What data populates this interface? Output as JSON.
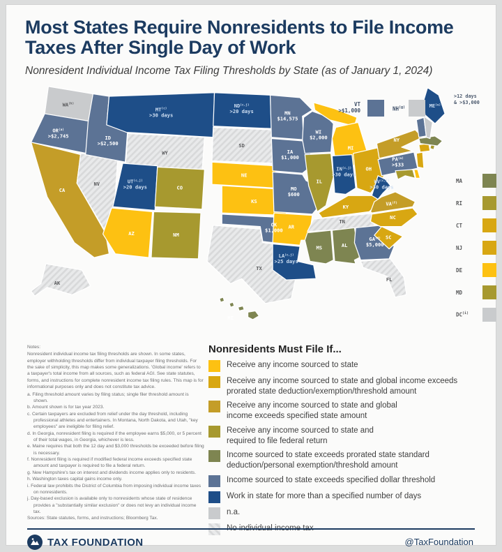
{
  "header": {
    "title": "Most States Require Nonresidents to File Income Taxes After Single Day of Work",
    "subtitle": "Nonresident Individual Income Tax Filing Thresholds by State (as of January 1, 2024)"
  },
  "legend": {
    "title": "Nonresidents Must File If...",
    "categories": [
      {
        "id": "any_income",
        "color": "#FDC112",
        "label": "Receive any income sourced to state"
      },
      {
        "id": "global_prorated",
        "color": "#D8A712",
        "label": "Receive any income sourced to state and global income exceeds\nprorated state deduction/exemption/threshold amount"
      },
      {
        "id": "global_specified",
        "color": "#C49D28",
        "label": "Receive any income sourced to state and global\nincome exceeds specified state amount"
      },
      {
        "id": "federal_return",
        "color": "#A7992F",
        "label": "Receive any income sourced to state and\nrequired to file federal return"
      },
      {
        "id": "prorated_standard",
        "color": "#7E8551",
        "label": "Income sourced to state exceeds prorated state standard\ndeduction/personal exemption/threshold amount"
      },
      {
        "id": "dollar",
        "color": "#5C7395",
        "label": "Income sourced to state exceeds specified dollar threshold"
      },
      {
        "id": "days",
        "color": "#1E4E88",
        "label": "Work in state for more than a specified number of days"
      },
      {
        "id": "na",
        "color": "#C9CBCD",
        "label": "n.a."
      },
      {
        "id": "no_tax",
        "color": "#EAEBEC",
        "label": "No individual income tax",
        "hatched": true
      }
    ]
  },
  "map": {
    "me_annotation": ">12 days\n& >$3,000",
    "vt_callout": {
      "abbr": "VT",
      "sup": "",
      "value": ">$1,000",
      "cat": "dollar"
    },
    "nh_callout": {
      "abbr": "NH",
      "sup": "g",
      "value": "",
      "cat": "na"
    },
    "small_states": [
      "MA",
      "RI",
      "CT",
      "NJ",
      "DE",
      "MD",
      "DC"
    ],
    "states": [
      {
        "abbr": "WA",
        "sup": "h",
        "value": "",
        "cat": "na"
      },
      {
        "abbr": "OR",
        "sup": "a",
        "value": ">$2,745",
        "cat": "dollar"
      },
      {
        "abbr": "ID",
        "sup": "",
        "value": ">$2,500",
        "cat": "dollar"
      },
      {
        "abbr": "MT",
        "sup": "c",
        "value": ">30 days",
        "cat": "days"
      },
      {
        "abbr": "ND",
        "sup": "c,j",
        "value": ">20 days",
        "cat": "days"
      },
      {
        "abbr": "SD",
        "sup": "",
        "value": "",
        "cat": "no_tax"
      },
      {
        "abbr": "WY",
        "sup": "",
        "value": "",
        "cat": "no_tax"
      },
      {
        "abbr": "NV",
        "sup": "",
        "value": "",
        "cat": "no_tax"
      },
      {
        "abbr": "CA",
        "sup": "",
        "value": "",
        "cat": "global_specified"
      },
      {
        "abbr": "UT",
        "sup": "c,j",
        "value": ">20 days",
        "cat": "days"
      },
      {
        "abbr": "CO",
        "sup": "",
        "value": "",
        "cat": "federal_return"
      },
      {
        "abbr": "AZ",
        "sup": "",
        "value": "",
        "cat": "any_income"
      },
      {
        "abbr": "NM",
        "sup": "",
        "value": "",
        "cat": "federal_return"
      },
      {
        "abbr": "NE",
        "sup": "",
        "value": "",
        "cat": "any_income"
      },
      {
        "abbr": "KS",
        "sup": "",
        "value": "",
        "cat": "any_income"
      },
      {
        "abbr": "OK",
        "sup": "",
        "value": "$1,000",
        "cat": "dollar"
      },
      {
        "abbr": "TX",
        "sup": "",
        "value": "",
        "cat": "no_tax"
      },
      {
        "abbr": "MN",
        "sup": "",
        "value": "$14,575",
        "cat": "dollar"
      },
      {
        "abbr": "IA",
        "sup": "",
        "value": "$1,000",
        "cat": "dollar"
      },
      {
        "abbr": "MO",
        "sup": "",
        "value": "$600",
        "cat": "dollar"
      },
      {
        "abbr": "AR",
        "sup": "",
        "value": "",
        "cat": "any_income"
      },
      {
        "abbr": "LA",
        "sup": "c,j",
        "value": ">25 days",
        "cat": "days"
      },
      {
        "abbr": "WI",
        "sup": "",
        "value": "$2,000",
        "cat": "dollar"
      },
      {
        "abbr": "IL",
        "sup": "",
        "value": "",
        "cat": "federal_return"
      },
      {
        "abbr": "MI",
        "sup": "",
        "value": "",
        "cat": "any_income"
      },
      {
        "abbr": "IN",
        "sup": "c,j",
        "value": ">30 days",
        "cat": "days"
      },
      {
        "abbr": "OH",
        "sup": "",
        "value": "",
        "cat": "global_prorated"
      },
      {
        "abbr": "KY",
        "sup": "",
        "value": "",
        "cat": "global_prorated"
      },
      {
        "abbr": "TN",
        "sup": "",
        "value": "",
        "cat": "no_tax"
      },
      {
        "abbr": "MS",
        "sup": "",
        "value": "",
        "cat": "prorated_standard"
      },
      {
        "abbr": "AL",
        "sup": "",
        "value": "",
        "cat": "prorated_standard"
      },
      {
        "abbr": "GA",
        "sup": "d",
        "value": "$5,000",
        "cat": "dollar"
      },
      {
        "abbr": "FL",
        "sup": "",
        "value": "",
        "cat": "no_tax"
      },
      {
        "abbr": "SC",
        "sup": "",
        "value": "",
        "cat": "global_prorated"
      },
      {
        "abbr": "NC",
        "sup": "",
        "value": "",
        "cat": "global_prorated"
      },
      {
        "abbr": "VA",
        "sup": "f",
        "value": "",
        "cat": "global_specified"
      },
      {
        "abbr": "WV",
        "sup": "c,j",
        "value": ">30 days",
        "cat": "days"
      },
      {
        "abbr": "PA",
        "sup": "a",
        "value": ">$33",
        "cat": "dollar"
      },
      {
        "abbr": "NY",
        "sup": "",
        "value": "",
        "cat": "global_specified"
      },
      {
        "abbr": "ME",
        "sup": "e",
        "value": "",
        "cat": "days"
      },
      {
        "abbr": "VT",
        "sup": "",
        "value": ">$1,000",
        "cat": "dollar"
      },
      {
        "abbr": "NH",
        "sup": "g",
        "value": "",
        "cat": "na"
      },
      {
        "abbr": "MA",
        "sup": "",
        "value": "",
        "cat": "prorated_standard"
      },
      {
        "abbr": "RI",
        "sup": "",
        "value": "",
        "cat": "federal_return"
      },
      {
        "abbr": "CT",
        "sup": "",
        "value": "",
        "cat": "global_prorated"
      },
      {
        "abbr": "NJ",
        "sup": "",
        "value": "",
        "cat": "global_prorated"
      },
      {
        "abbr": "DE",
        "sup": "",
        "value": "",
        "cat": "any_income"
      },
      {
        "abbr": "MD",
        "sup": "",
        "value": "",
        "cat": "federal_return"
      },
      {
        "abbr": "DC",
        "sup": "i",
        "value": "",
        "cat": "na"
      },
      {
        "abbr": "AK",
        "sup": "",
        "value": "",
        "cat": "no_tax"
      },
      {
        "abbr": "HI",
        "sup": "",
        "value": "",
        "cat": "prorated_standard"
      }
    ]
  },
  "notes": {
    "intro": [
      "Notes:",
      "Nonresident individual income tax filing thresholds are shown. In some states, employer withholding thresholds differ from individual taxpayer filing thresholds. For the sake of simplicity, this map makes some generalizations. 'Global income' refers to a taxpayer's total income from all sources, such as federal AGI. See state statutes, forms, and instructions for complete nonresident income tax filing rules. This map is for informational purposes only and does not constitute tax advice."
    ],
    "footnotes": [
      "a. Filing threshold amount varies by filing status; single filer threshold amount is shown.",
      "b. Amount shown is for tax year 2023.",
      "c. Certain taxpayers are excluded from relief under the day threshold, including professional athletes and entertainers. In Montana, North Dakota, and Utah, \"key employees\" are ineligible for filing relief.",
      "d. In Georgia, nonresident filing is required if the employee earns $5,000, or 5 percent of their total wages, in Georgia, whichever is less.",
      "e. Maine requires that both the 12 day and $3,000 thresholds be exceeded before filing is necessary.",
      "f. Nonresident filing is required if modified federal income exceeds specified state amount and taxpayer is required to file a federal return.",
      "g. New Hampshire's tax on interest and dividends income applies only to residents.",
      "h. Washington taxes capital gains income only.",
      "i. Federal law prohibits the District of Columbia from imposing individual income taxes on nonresidents.",
      "j. Day-based exclusion is available only to nonresidents whose state of residence provides a \"substantially similar exclusion\" or does not levy an individual income tax."
    ],
    "sources": "Sources: State statutes, forms, and instructions; Bloomberg Tax."
  },
  "footer": {
    "brand": "TAX FOUNDATION",
    "handle": "@TaxFoundation"
  }
}
